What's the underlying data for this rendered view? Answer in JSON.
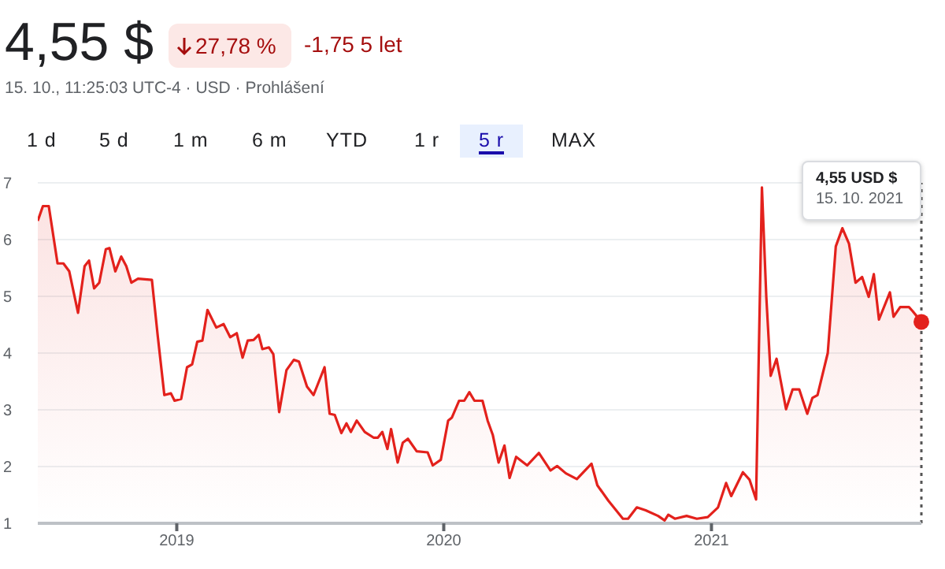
{
  "chart_data": {
    "type": "area",
    "title": "4,55 $",
    "subtitle": "15. 10., 11:25:03 UTC-4 · USD · Prohlášení",
    "annotations": [
      "27,78 %",
      "-1,75 5 let",
      "1 d",
      "5 d",
      "1 m",
      "6 m",
      "YTD",
      "1 r",
      "5 r",
      "MAX",
      "4,55 USD $",
      "15. 10. 2021"
    ],
    "x": [
      "2018-06-25",
      "2018-07-02",
      "2018-07-10",
      "2018-07-22",
      "2018-07-30",
      "2018-08-07",
      "2018-08-19",
      "2018-08-28",
      "2018-09-03",
      "2018-09-10",
      "2018-09-17",
      "2018-09-26",
      "2018-10-01",
      "2018-10-09",
      "2018-10-17",
      "2018-10-24",
      "2018-10-31",
      "2018-11-09",
      "2018-11-28",
      "2018-12-06",
      "2018-12-15",
      "2018-12-24",
      "2018-12-29",
      "2019-01-07",
      "2019-01-15",
      "2019-01-22",
      "2019-01-29",
      "2019-02-05",
      "2019-02-12",
      "2019-02-24",
      "2019-03-06",
      "2019-03-15",
      "2019-03-24",
      "2019-04-01",
      "2019-04-08",
      "2019-04-16",
      "2019-04-23",
      "2019-04-28",
      "2019-05-07",
      "2019-05-13",
      "2019-05-21",
      "2019-05-31",
      "2019-06-10",
      "2019-06-17",
      "2019-06-28",
      "2019-07-07",
      "2019-07-22",
      "2019-07-29",
      "2019-08-05",
      "2019-08-14",
      "2019-08-21",
      "2019-08-27",
      "2019-09-04",
      "2019-09-15",
      "2019-09-27",
      "2019-10-03",
      "2019-10-09",
      "2019-10-16",
      "2019-10-21",
      "2019-10-30",
      "2019-11-06",
      "2019-11-13",
      "2019-11-25",
      "2019-12-10",
      "2019-12-17",
      "2019-12-28",
      "2020-01-07",
      "2020-01-12",
      "2020-01-22",
      "2020-01-29",
      "2020-02-05",
      "2020-02-12",
      "2020-02-23",
      "2020-03-01",
      "2020-03-08",
      "2020-03-16",
      "2020-03-24",
      "2020-03-31",
      "2020-04-09",
      "2020-04-24",
      "2020-05-10",
      "2020-05-26",
      "2020-06-04",
      "2020-06-16",
      "2020-07-01",
      "2020-07-12",
      "2020-07-21",
      "2020-07-29",
      "2020-08-13",
      "2020-09-02",
      "2020-09-09",
      "2020-09-21",
      "2020-10-03",
      "2020-10-20",
      "2020-10-29",
      "2020-11-03",
      "2020-11-12",
      "2020-11-28",
      "2020-12-12",
      "2020-12-27",
      "2021-01-10",
      "2021-01-21",
      "2021-01-28",
      "2021-02-13",
      "2021-02-22",
      "2021-03-03",
      "2021-03-11",
      "2021-03-17",
      "2021-03-23",
      "2021-03-31",
      "2021-04-13",
      "2021-04-22",
      "2021-05-01",
      "2021-05-12",
      "2021-05-19",
      "2021-05-26",
      "2021-06-09",
      "2021-06-20",
      "2021-06-29",
      "2021-07-08",
      "2021-07-17",
      "2021-07-26",
      "2021-08-04",
      "2021-08-11",
      "2021-08-18",
      "2021-09-02",
      "2021-09-07",
      "2021-09-16",
      "2021-09-28",
      "2021-10-03",
      "2021-10-15"
    ],
    "values": [
      6.33,
      6.59,
      6.59,
      5.58,
      5.58,
      5.44,
      4.71,
      5.53,
      5.63,
      5.14,
      5.24,
      5.83,
      5.85,
      5.44,
      5.7,
      5.53,
      5.24,
      5.31,
      5.29,
      4.3,
      3.26,
      3.29,
      3.16,
      3.19,
      3.75,
      3.8,
      4.2,
      4.22,
      4.76,
      4.45,
      4.51,
      4.28,
      4.35,
      3.92,
      4.22,
      4.23,
      4.32,
      4.07,
      4.1,
      3.98,
      2.96,
      3.7,
      3.88,
      3.85,
      3.41,
      3.26,
      3.75,
      2.93,
      2.91,
      2.59,
      2.76,
      2.61,
      2.81,
      2.61,
      2.51,
      2.51,
      2.61,
      2.31,
      2.66,
      2.07,
      2.42,
      2.49,
      2.27,
      2.25,
      2.02,
      2.12,
      2.81,
      2.86,
      3.16,
      3.16,
      3.31,
      3.16,
      3.16,
      2.81,
      2.56,
      2.07,
      2.37,
      1.8,
      2.17,
      2.02,
      2.24,
      1.93,
      2.01,
      1.88,
      1.78,
      1.93,
      2.05,
      1.67,
      1.4,
      1.08,
      1.08,
      1.28,
      1.23,
      1.13,
      1.05,
      1.15,
      1.08,
      1.13,
      1.08,
      1.11,
      1.28,
      1.71,
      1.48,
      1.9,
      1.77,
      1.42,
      6.92,
      4.99,
      3.6,
      3.9,
      3.01,
      3.36,
      3.36,
      2.93,
      3.21,
      3.26,
      4.0,
      5.88,
      6.2,
      5.93,
      5.24,
      5.34,
      4.99,
      5.39,
      4.59,
      5.07,
      4.64,
      4.81,
      4.81,
      4.74,
      4.55
    ],
    "color": "#e3211c",
    "xlim": [
      "2018-06-25",
      "2021-10-15"
    ],
    "xticks": [
      {
        "value": "2019-01-01",
        "label": "2019"
      },
      {
        "value": "2020-01-01",
        "label": "2020"
      },
      {
        "value": "2021-01-01",
        "label": "2021"
      }
    ],
    "ylim": [
      1,
      7
    ],
    "yticks": [
      1,
      2,
      3,
      4,
      5,
      6,
      7
    ],
    "grid": "y",
    "ref_lines": [
      {
        "axis": "x",
        "value": "2021-10-15",
        "label": null,
        "color": "#555555",
        "line_style": "dotted"
      }
    ]
  }
}
